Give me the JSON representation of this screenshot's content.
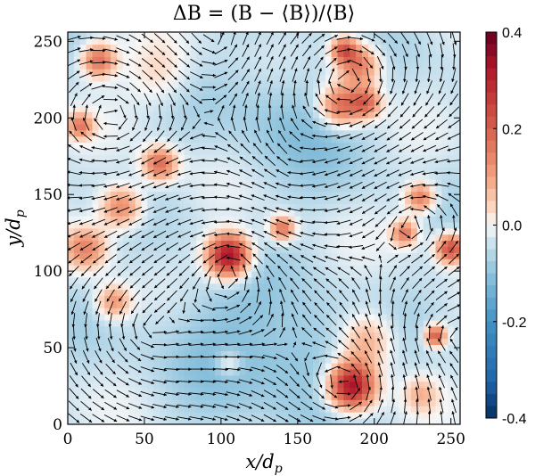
{
  "chart_data": {
    "type": "heatmap",
    "title": "ΔB = (B − ⟨B⟩)/⟨B⟩",
    "xlabel": "x/d",
    "xlabel_sub": "p",
    "ylabel": "y/d",
    "ylabel_sub": "p",
    "xlim": [
      0,
      256
    ],
    "ylim": [
      0,
      256
    ],
    "x_ticks": [
      0,
      50,
      100,
      150,
      200,
      250
    ],
    "y_ticks": [
      0,
      50,
      100,
      150,
      200,
      250
    ],
    "x_tick_labels": [
      "0",
      "50",
      "100",
      "150",
      "200",
      "250"
    ],
    "y_tick_labels": [
      "0",
      "50",
      "100",
      "150",
      "200",
      "250"
    ],
    "colorbar": {
      "min": -0.4,
      "max": 0.4,
      "colormap": "RdBu_r",
      "ticks": [
        0.4,
        0.2,
        0.0,
        -0.2,
        -0.4
      ],
      "tick_labels": [
        "0.4",
        "0.2",
        "0.0",
        "-0.2",
        "-0.4"
      ]
    },
    "overlay": "velocity quiver arrows (black)",
    "background_level": -0.04,
    "features": [
      {
        "x": 105,
        "y": 110,
        "value": 0.4,
        "r": 10
      },
      {
        "x": 185,
        "y": 25,
        "value": 0.4,
        "r": 11
      },
      {
        "x": 195,
        "y": 55,
        "value": 0.15,
        "r": 13
      },
      {
        "x": 12,
        "y": 115,
        "value": 0.18,
        "r": 10
      },
      {
        "x": 35,
        "y": 142,
        "value": 0.2,
        "r": 10
      },
      {
        "x": 60,
        "y": 170,
        "value": 0.22,
        "r": 8
      },
      {
        "x": 20,
        "y": 238,
        "value": 0.22,
        "r": 8
      },
      {
        "x": 8,
        "y": 195,
        "value": 0.18,
        "r": 6
      },
      {
        "x": 140,
        "y": 128,
        "value": 0.22,
        "r": 6
      },
      {
        "x": 178,
        "y": 208,
        "value": 0.24,
        "r": 10
      },
      {
        "x": 195,
        "y": 210,
        "value": 0.2,
        "r": 7
      },
      {
        "x": 190,
        "y": 235,
        "value": 0.22,
        "r": 10
      },
      {
        "x": 180,
        "y": 245,
        "value": 0.22,
        "r": 6
      },
      {
        "x": 250,
        "y": 115,
        "value": 0.28,
        "r": 7
      },
      {
        "x": 220,
        "y": 125,
        "value": 0.2,
        "r": 6
      },
      {
        "x": 230,
        "y": 148,
        "value": 0.2,
        "r": 7
      },
      {
        "x": 240,
        "y": 58,
        "value": 0.26,
        "r": 5
      },
      {
        "x": 30,
        "y": 80,
        "value": 0.16,
        "r": 8
      },
      {
        "x": 160,
        "y": 40,
        "value": -0.08,
        "r": 25
      },
      {
        "x": 100,
        "y": 60,
        "value": -0.06,
        "r": 30
      },
      {
        "x": 150,
        "y": 200,
        "value": -0.06,
        "r": 30
      },
      {
        "x": 230,
        "y": 20,
        "value": 0.1,
        "r": 8
      },
      {
        "x": 60,
        "y": 230,
        "value": 0.08,
        "r": 15
      },
      {
        "x": 105,
        "y": 40,
        "value": 0.1,
        "r": 6
      }
    ],
    "vortices": [
      {
        "x": 108,
        "y": 108,
        "strength": 1.0
      },
      {
        "x": 185,
        "y": 25,
        "strength": 1.0
      },
      {
        "x": 183,
        "y": 225,
        "strength": -1.2
      },
      {
        "x": 225,
        "y": 135,
        "strength": 0.8
      },
      {
        "x": 30,
        "y": 200,
        "strength": -0.8
      },
      {
        "x": 50,
        "y": 60,
        "strength": 0.7
      },
      {
        "x": 145,
        "y": 165,
        "strength": -0.6
      },
      {
        "x": 240,
        "y": 60,
        "strength": -0.6
      },
      {
        "x": 100,
        "y": 245,
        "strength": 0.5
      }
    ]
  }
}
